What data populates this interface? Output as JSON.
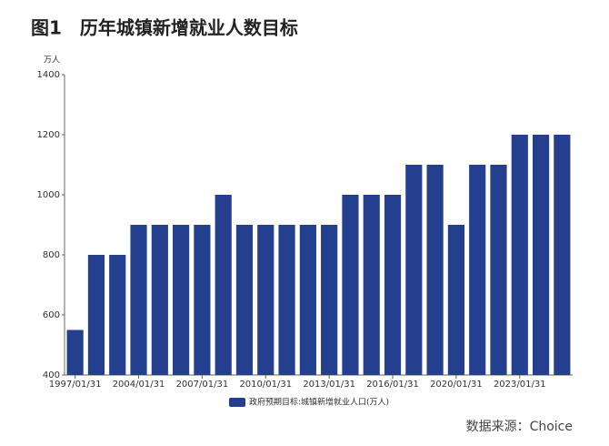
{
  "chart_data": {
    "type": "bar",
    "title": "图1　历年城镇新增就业人数目标",
    "y_unit": "万人",
    "series": [
      {
        "name": "政府预期目标:城镇新增就业人口(万人)",
        "color": "#253f8f",
        "values": [
          550,
          800,
          800,
          900,
          900,
          900,
          900,
          1000,
          900,
          900,
          900,
          900,
          900,
          1000,
          1000,
          1000,
          1100,
          1100,
          900,
          1100,
          1100,
          1200,
          1200,
          1200
        ]
      }
    ],
    "categories": [
      "1997/01/31",
      null,
      null,
      "2004/01/31",
      null,
      null,
      "2007/01/31",
      null,
      null,
      "2010/01/31",
      null,
      null,
      "2013/01/31",
      null,
      null,
      "2016/01/31",
      null,
      null,
      "2020/01/31",
      null,
      null,
      "2023/01/31",
      null,
      null
    ],
    "ylim": [
      400,
      1400
    ],
    "yticks": [
      400,
      600,
      800,
      1000,
      1200,
      1400
    ],
    "source": "数据来源：Choice"
  }
}
